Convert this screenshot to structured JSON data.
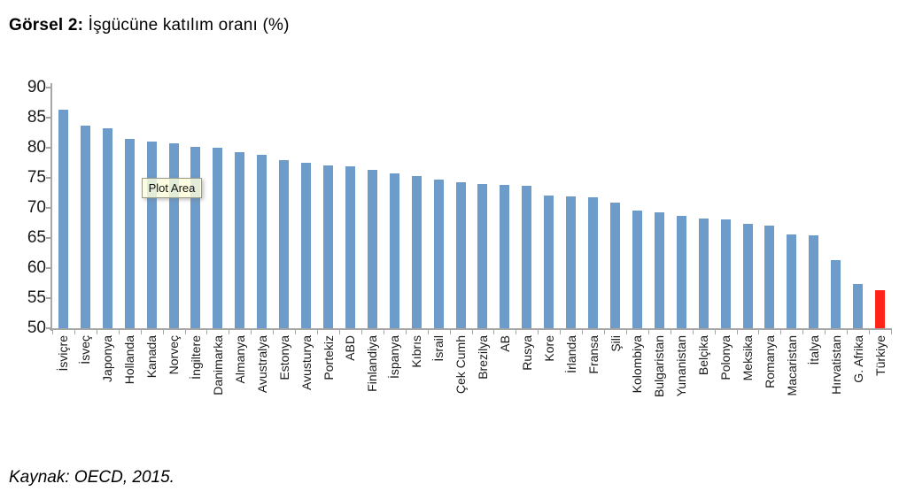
{
  "title": {
    "prefix": "Görsel 2:",
    "rest": " İşgücüne katılım oranı (%)"
  },
  "source": "Kaynak: OECD, 2015.",
  "tooltip_label": "Plot Area",
  "colors": {
    "bar": "#6d9ccb",
    "highlight": "#ff2318",
    "axis": "#a6a6a6"
  },
  "chart_data": {
    "type": "bar",
    "title": "İşgücüne katılım oranı (%)",
    "xlabel": "",
    "ylabel": "",
    "ylim": [
      50,
      90
    ],
    "yticks": [
      90,
      85,
      80,
      75,
      70,
      65,
      60,
      55,
      50
    ],
    "grid": false,
    "legend": false,
    "annotation": "Plot Area",
    "highlight_category": "Türkiye",
    "categories": [
      "İsviçre",
      "İsveç",
      "Japonya",
      "Hollanda",
      "Kanada",
      "Norveç",
      "İngiltere",
      "Danimarka",
      "Almanya",
      "Avustralya",
      "Estonya",
      "Avusturya",
      "Portekiz",
      "ABD",
      "Finlandiya",
      "İspanya",
      "Kıbrıs",
      "İsrail",
      "Çek Cumh",
      "Brezilya",
      "AB",
      "Rusya",
      "Kore",
      "İrlanda",
      "Fransa",
      "Şili",
      "Kolombiya",
      "Bulgaristan",
      "Yunanistan",
      "Belçika",
      "Polonya",
      "Meksika",
      "Romanya",
      "Macaristan",
      "İtalya",
      "Hırvatistan",
      "G. Afrika",
      "Türkiye"
    ],
    "values": [
      86.3,
      83.7,
      83.2,
      81.5,
      81.0,
      80.8,
      80.1,
      80.0,
      79.2,
      78.9,
      78.0,
      77.5,
      77.1,
      76.9,
      76.4,
      75.8,
      75.3,
      74.7,
      74.3,
      74.0,
      73.9,
      73.7,
      72.1,
      71.9,
      71.8,
      70.9,
      69.6,
      69.3,
      68.7,
      68.3,
      68.1,
      67.4,
      67.0,
      65.6,
      65.5,
      61.3,
      57.4,
      56.3
    ]
  }
}
